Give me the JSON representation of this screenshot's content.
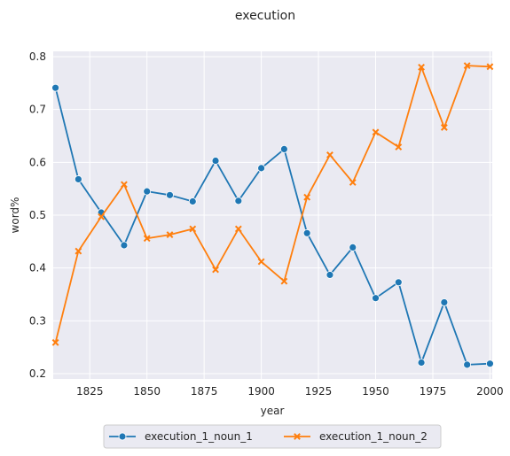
{
  "chart_data": {
    "type": "line",
    "title": "execution",
    "xlabel": "year",
    "ylabel": "word%",
    "xlim": [
      1809,
      2001
    ],
    "ylim": [
      0.19,
      0.81
    ],
    "xticks": [
      1825,
      1850,
      1875,
      1900,
      1925,
      1950,
      1975,
      2000
    ],
    "yticks": [
      0.2,
      0.3,
      0.4,
      0.5,
      0.6,
      0.7,
      0.8
    ],
    "grid": true,
    "legend_position": "bottom-center",
    "x": [
      1810,
      1820,
      1830,
      1840,
      1850,
      1860,
      1870,
      1880,
      1890,
      1900,
      1910,
      1920,
      1930,
      1940,
      1950,
      1960,
      1970,
      1980,
      1990,
      2000
    ],
    "series": [
      {
        "name": "execution_1_noun_1",
        "color": "#1f77b4",
        "marker": "circle",
        "values": [
          0.741,
          0.568,
          0.505,
          0.443,
          0.545,
          0.538,
          0.526,
          0.603,
          0.527,
          0.589,
          0.625,
          0.466,
          0.387,
          0.439,
          0.343,
          0.373,
          0.221,
          0.335,
          0.217,
          0.219
        ]
      },
      {
        "name": "execution_1_noun_2",
        "color": "#ff7f0e",
        "marker": "x",
        "values": [
          0.259,
          0.432,
          0.497,
          0.558,
          0.456,
          0.463,
          0.474,
          0.397,
          0.474,
          0.412,
          0.375,
          0.534,
          0.614,
          0.562,
          0.657,
          0.629,
          0.78,
          0.666,
          0.783,
          0.781
        ]
      }
    ]
  }
}
